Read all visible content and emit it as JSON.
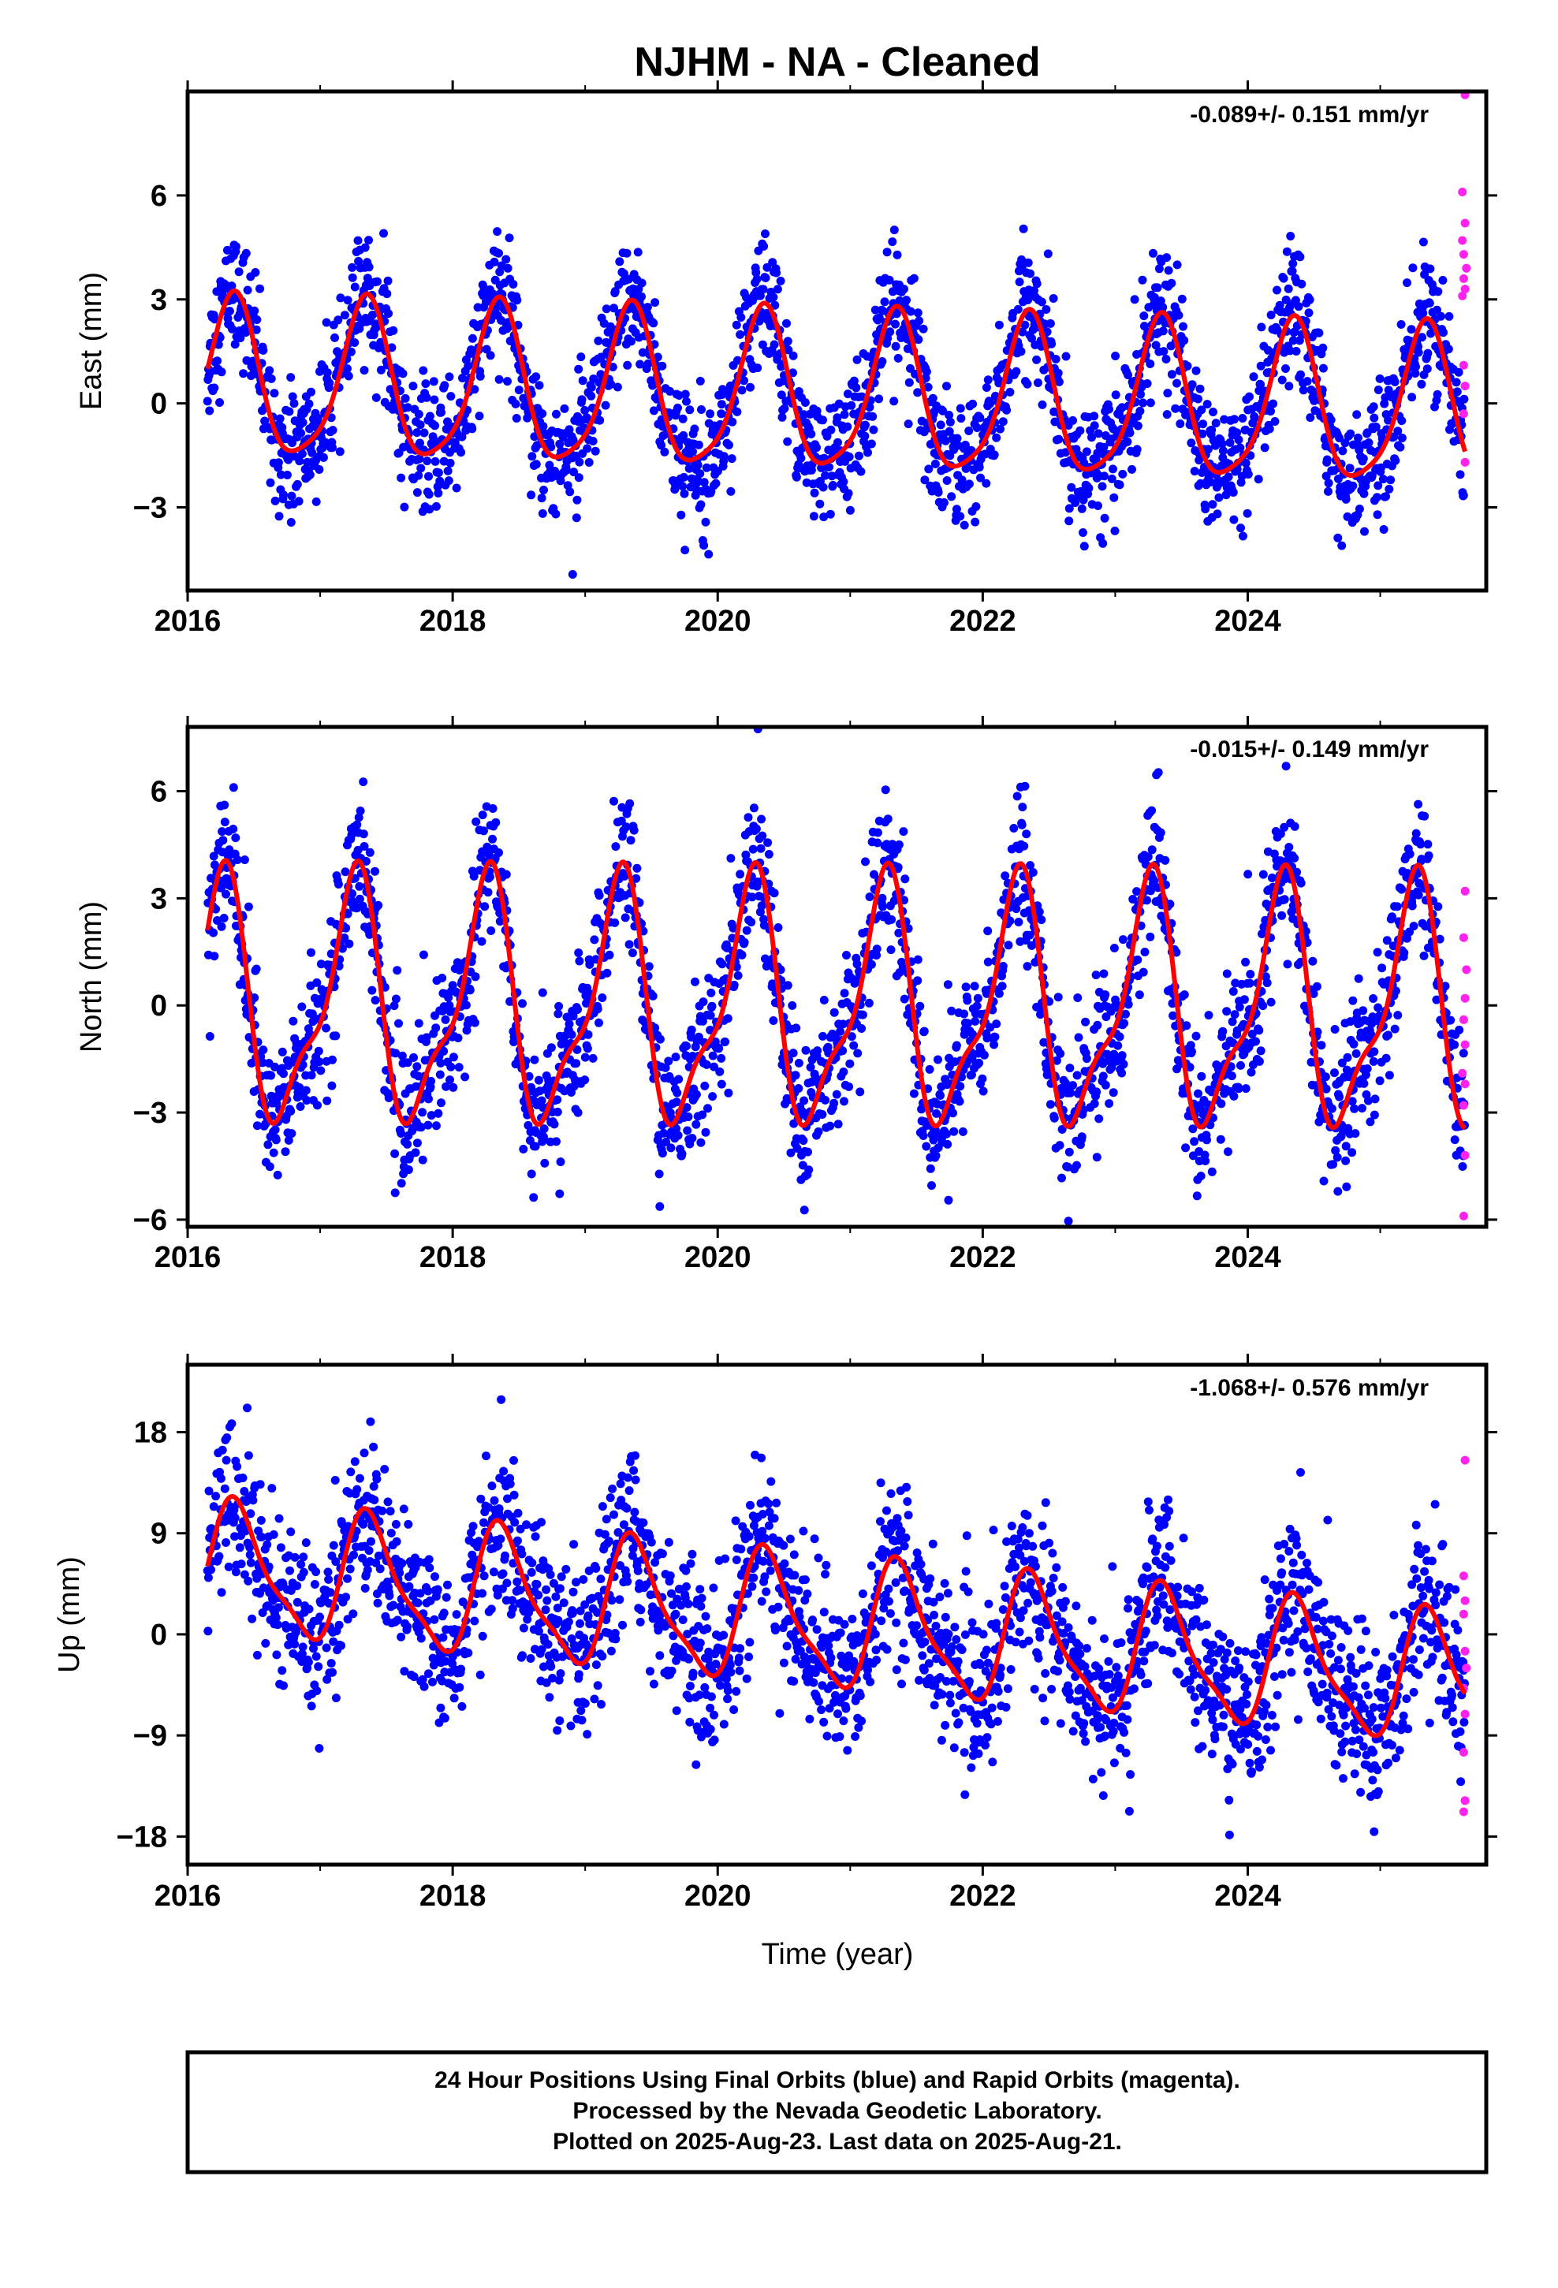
{
  "figure": {
    "title": "NJHM  - NA - Cleaned",
    "xlabel": "Time (year)",
    "caption": [
      "24 Hour Positions Using Final Orbits (blue) and Rapid Orbits (magenta).",
      "Processed by the Nevada Geodetic Laboratory.",
      "Plotted on 2025-Aug-23. Last data on 2025-Aug-21."
    ],
    "colors": {
      "final": "#0000ff",
      "rapid": "#ff22ee",
      "model": "#ff0000",
      "frame": "#000000"
    }
  },
  "chart_data": [
    {
      "type": "scatter",
      "ylabel": "East (mm)",
      "rate": "-0.089+/- 0.151 mm/yr",
      "xlim": [
        2016.0,
        2025.8
      ],
      "ylim": [
        -5.4,
        9.0
      ],
      "xticks": [
        2016,
        2018,
        2020,
        2022,
        2024
      ],
      "xtick_labels": [
        "2016",
        "2018",
        "2020",
        "2022",
        "2024"
      ],
      "yticks": [
        6,
        3,
        0,
        -3
      ],
      "ytick_labels": [
        "6",
        "3",
        "0",
        "−3"
      ],
      "data_start": 2016.15,
      "data_end": 2025.64,
      "model": {
        "amp_annual": 2.25,
        "phase_annual": 0.34,
        "amp_semiannual": 0.45,
        "phase_semiannual": 0.37,
        "offset": 0.6,
        "trend_mm_per_yr": -0.089
      },
      "scatter_sd": 0.9,
      "rapid_points": [
        {
          "x": 2025.64,
          "y": 8.9
        },
        {
          "x": 2025.62,
          "y": 6.1
        },
        {
          "x": 2025.64,
          "y": 5.2
        },
        {
          "x": 2025.62,
          "y": 4.7
        },
        {
          "x": 2025.63,
          "y": 4.3
        },
        {
          "x": 2025.65,
          "y": 3.9
        },
        {
          "x": 2025.63,
          "y": 3.6
        },
        {
          "x": 2025.64,
          "y": 3.3
        },
        {
          "x": 2025.62,
          "y": 3.1
        },
        {
          "x": 2025.63,
          "y": 1.1
        },
        {
          "x": 2025.64,
          "y": 0.5
        },
        {
          "x": 2025.63,
          "y": -0.3
        },
        {
          "x": 2025.64,
          "y": -1.7
        }
      ]
    },
    {
      "type": "scatter",
      "ylabel": "North (mm)",
      "rate": "-0.015+/- 0.149 mm/yr",
      "xlim": [
        2016.0,
        2025.8
      ],
      "ylim": [
        -6.2,
        7.8
      ],
      "xticks": [
        2016,
        2018,
        2020,
        2022,
        2024
      ],
      "xtick_labels": [
        "2016",
        "2018",
        "2020",
        "2022",
        "2024"
      ],
      "yticks": [
        6,
        3,
        0,
        -3,
        -6
      ],
      "ytick_labels": [
        "6",
        "3",
        "0",
        "−3",
        "−6"
      ],
      "data_start": 2016.15,
      "data_end": 2025.64,
      "model": {
        "amp_annual": 3.2,
        "phase_annual": 0.24,
        "amp_semiannual": 1.1,
        "phase_semiannual": 0.32,
        "offset": 0.0,
        "trend_mm_per_yr": -0.015
      },
      "scatter_sd": 1.0,
      "rapid_points": [
        {
          "x": 2025.64,
          "y": 3.2
        },
        {
          "x": 2025.63,
          "y": 1.9
        },
        {
          "x": 2025.65,
          "y": 1.0
        },
        {
          "x": 2025.64,
          "y": 0.2
        },
        {
          "x": 2025.63,
          "y": -0.4
        },
        {
          "x": 2025.64,
          "y": -1.1
        },
        {
          "x": 2025.62,
          "y": -1.9
        },
        {
          "x": 2025.64,
          "y": -2.2
        },
        {
          "x": 2025.63,
          "y": -2.8
        },
        {
          "x": 2025.64,
          "y": -4.2
        },
        {
          "x": 2025.63,
          "y": -5.9
        }
      ]
    },
    {
      "type": "scatter",
      "ylabel": "Up (mm)",
      "rate": "-1.068+/- 0.576 mm/yr",
      "xlim": [
        2016.0,
        2025.8
      ],
      "ylim": [
        -20.5,
        24.0
      ],
      "xticks": [
        2016,
        2018,
        2020,
        2022,
        2024
      ],
      "xtick_labels": [
        "2016",
        "2018",
        "2020",
        "2022",
        "2024"
      ],
      "yticks": [
        18,
        9,
        0,
        -9,
        -18
      ],
      "ytick_labels": [
        "18",
        "9",
        "0",
        "−9",
        "−18"
      ],
      "data_start": 2016.15,
      "data_end": 2025.64,
      "model": {
        "amp_annual": 5.5,
        "phase_annual": 0.38,
        "amp_semiannual": 1.5,
        "phase_semiannual": 0.3,
        "offset": 6.0,
        "trend_mm_per_yr": -1.068
      },
      "scatter_sd": 3.6,
      "rapid_points": [
        {
          "x": 2025.64,
          "y": 15.5
        },
        {
          "x": 2025.63,
          "y": 5.2
        },
        {
          "x": 2025.64,
          "y": 3.0
        },
        {
          "x": 2025.63,
          "y": 1.8
        },
        {
          "x": 2025.64,
          "y": -1.5
        },
        {
          "x": 2025.65,
          "y": -3.0
        },
        {
          "x": 2025.63,
          "y": -4.8
        },
        {
          "x": 2025.64,
          "y": -7.1
        },
        {
          "x": 2025.63,
          "y": -10.5
        },
        {
          "x": 2025.64,
          "y": -14.8
        },
        {
          "x": 2025.63,
          "y": -15.8
        }
      ]
    }
  ]
}
